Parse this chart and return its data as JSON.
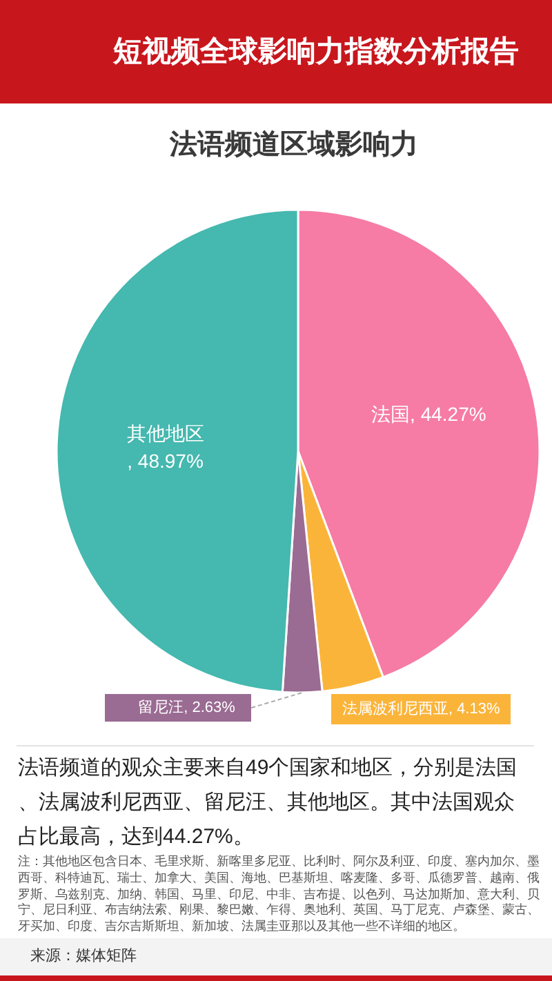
{
  "chart_data": {
    "type": "pie",
    "title": "短视频全球影响力指数分析报告",
    "subtitle": "法语频道区域影响力",
    "categories": [
      "法国",
      "法属波利尼西亚",
      "留尼汪",
      "其他地区"
    ],
    "values": [
      44.27,
      4.13,
      2.63,
      48.97
    ],
    "colors": [
      "#f67ba5",
      "#fbb43a",
      "#9a6b93",
      "#45b8af"
    ],
    "value_labels": [
      ", 44.27%",
      ", 4.13%",
      ", 2.63%",
      ", 48.97%"
    ],
    "annotations": [
      "法语频道的观众主要来自49个国家和地区，分别是法国、法属波利尼西亚、留尼汪、其他地区。其中法国观众占比最高，达到44.27%。",
      "注：其他地区包含日本、毛里求斯、新喀里多尼亚、比利时、阿尔及利亚、印度、塞内加尔、墨西哥、科特迪瓦、瑞士、加拿大、美国、海地、巴基斯坦、喀麦隆、多哥、瓜德罗普、越南、俄罗斯、乌兹别克、加纳、韩国、马里、印尼、中非、吉布提、以色列、马达加斯加、意大利、贝宁、尼日利亚、布吉纳法索、刚果、黎巴嫩、乍得、奥地利、英国、马丁尼克、卢森堡、蒙古、牙买加、印度、吉尔吉斯斯坦、新加坡、法属圭亚那以及其他一些不详细的地区。",
      "来源：媒体矩阵"
    ]
  }
}
